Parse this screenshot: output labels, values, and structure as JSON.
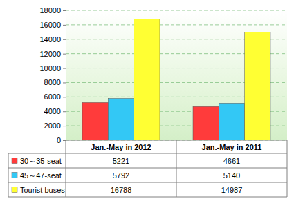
{
  "chart_data": {
    "type": "bar",
    "categories": [
      "Jan.-May in 2012",
      "Jan.-May in 2011"
    ],
    "series": [
      {
        "name": "30～35-seat",
        "color": "#ff3b3b",
        "values": [
          5221,
          4661
        ]
      },
      {
        "name": "45～47-seat",
        "color": "#33c8f5",
        "values": [
          5792,
          5140
        ]
      },
      {
        "name": "Tourist buses",
        "color": "#ffff33",
        "values": [
          16788,
          14987
        ]
      }
    ],
    "ylim": [
      0,
      18000
    ],
    "yticks": [
      0,
      2000,
      4000,
      6000,
      8000,
      10000,
      12000,
      14000,
      16000,
      18000
    ],
    "grid": true
  }
}
